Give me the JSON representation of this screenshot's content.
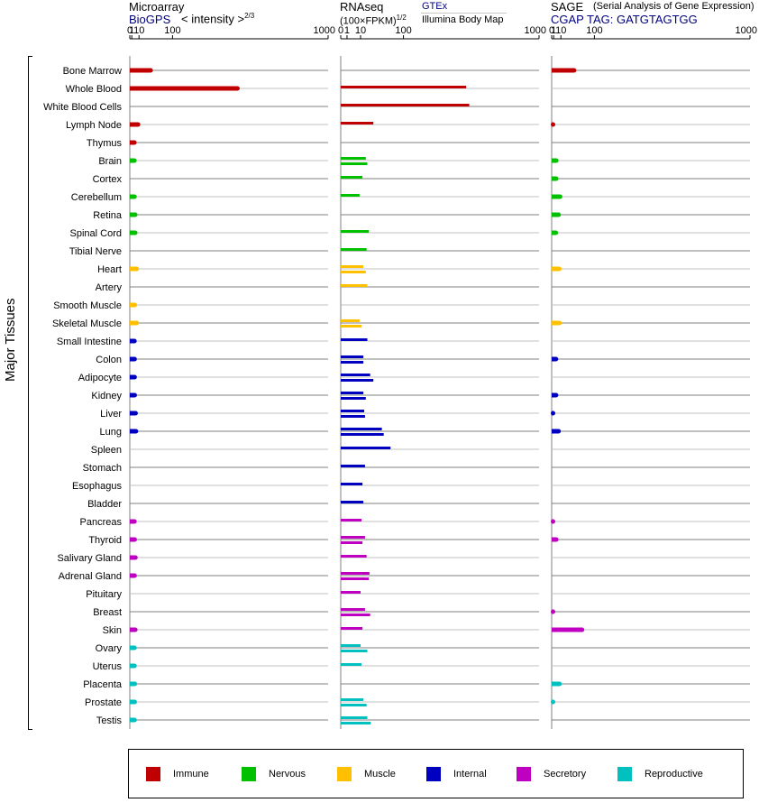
{
  "headers": {
    "microarray_title": "Microarray",
    "microarray_source": "BioGPS",
    "microarray_unit": "< intensity >",
    "microarray_unit_exp": "2/3",
    "rnaseq_title": "RNAseq",
    "rnaseq_unit": "(100×FPKM)",
    "rnaseq_unit_exp": "1/2",
    "rnaseq_source_gtex": "GTEx",
    "rnaseq_source_illumina": "Illumina Body Map",
    "sage_title": "SAGE",
    "sage_subtitle": "(Serial Analysis of Gene Expression)",
    "sage_tag": "CGAP TAG: GATGTAGTGG"
  },
  "y_axis_label": "Major Tissues",
  "legend": [
    {
      "label": "Immune",
      "color": "#c00000"
    },
    {
      "label": "Nervous",
      "color": "#00c000"
    },
    {
      "label": "Muscle",
      "color": "#ffc000"
    },
    {
      "label": "Internal",
      "color": "#0000c0"
    },
    {
      "label": "Secretory",
      "color": "#c000c0"
    },
    {
      "label": "Reproductive",
      "color": "#00c0c0"
    }
  ],
  "chart_data": [
    {
      "type": "bar",
      "title": "Microarray",
      "scale": "power 2/3",
      "xlim": [
        0,
        1000
      ],
      "ticks": [
        0,
        1,
        10,
        100,
        1000
      ],
      "categories": [
        "Bone Marrow",
        "Whole Blood",
        "White Blood Cells",
        "Lymph Node",
        "Thymus",
        "Brain",
        "Cortex",
        "Cerebellum",
        "Retina",
        "Spinal Cord",
        "Tibial Nerve",
        "Heart",
        "Artery",
        "Smooth Muscle",
        "Skeletal Muscle",
        "Small Intestine",
        "Colon",
        "Adipocyte",
        "Kidney",
        "Liver",
        "Lung",
        "Spleen",
        "Stomach",
        "Esophagus",
        "Bladder",
        "Pancreas",
        "Thyroid",
        "Salivary Gland",
        "Adrenal Gland",
        "Pituitary",
        "Breast",
        "Skin",
        "Ovary",
        "Uterus",
        "Placenta",
        "Prostate",
        "Testis"
      ],
      "groups": [
        "Immune",
        "Immune",
        "Immune",
        "Immune",
        "Immune",
        "Nervous",
        "Nervous",
        "Nervous",
        "Nervous",
        "Nervous",
        "Nervous",
        "Muscle",
        "Muscle",
        "Muscle",
        "Muscle",
        "Internal",
        "Internal",
        "Internal",
        "Internal",
        "Internal",
        "Internal",
        "Internal",
        "Internal",
        "Internal",
        "Internal",
        "Secretory",
        "Secretory",
        "Secretory",
        "Secretory",
        "Secretory",
        "Secretory",
        "Secretory",
        "Reproductive",
        "Reproductive",
        "Reproductive",
        "Reproductive",
        "Reproductive"
      ],
      "values": [
        [
          34
        ],
        [
          400
        ],
        [],
        [
          8.5
        ],
        [
          3.5
        ],
        [
          3.5
        ],
        [],
        [
          3.6
        ],
        [
          4.5
        ],
        [
          4.5
        ],
        [],
        [
          6.5
        ],
        [],
        [
          4
        ],
        [
          6.5
        ],
        [
          3.6
        ],
        [
          3.8
        ],
        [
          3.8
        ],
        [
          3.9
        ],
        [
          5
        ],
        [
          5.5
        ],
        [],
        [],
        [],
        [],
        [
          3.6
        ],
        [
          3.9
        ],
        [
          4.8
        ],
        [
          3.8
        ],
        [],
        [],
        [
          4.6
        ],
        [
          3.6
        ],
        [
          3.6
        ],
        [
          4
        ],
        [
          3.9
        ],
        [
          3.7
        ]
      ]
    },
    {
      "type": "bar",
      "title": "RNAseq",
      "scale": "power 1/2",
      "xlim": [
        0,
        1000
      ],
      "ticks": [
        0,
        1,
        10,
        100,
        1000
      ],
      "categories": [
        "Bone Marrow",
        "Whole Blood",
        "White Blood Cells",
        "Lymph Node",
        "Thymus",
        "Brain",
        "Cortex",
        "Cerebellum",
        "Retina",
        "Spinal Cord",
        "Tibial Nerve",
        "Heart",
        "Artery",
        "Smooth Muscle",
        "Skeletal Muscle",
        "Small Intestine",
        "Colon",
        "Adipocyte",
        "Kidney",
        "Liver",
        "Lung",
        "Spleen",
        "Stomach",
        "Esophagus",
        "Bladder",
        "Pancreas",
        "Thyroid",
        "Salivary Gland",
        "Adrenal Gland",
        "Pituitary",
        "Breast",
        "Skin",
        "Ovary",
        "Uterus",
        "Placenta",
        "Prostate",
        "Testis"
      ],
      "values": [
        [],
        [
          400
        ],
        [
          420
        ],
        [
          27
        ],
        [],
        [
          16,
          18
        ],
        [
          12
        ],
        [
          9
        ],
        [],
        [
          20
        ],
        [
          17
        ],
        [
          13,
          16
        ],
        [
          18
        ],
        [],
        [
          9,
          11
        ],
        [
          18
        ],
        [
          13,
          13
        ],
        [
          22,
          27
        ],
        [
          13,
          16
        ],
        [
          14,
          15
        ],
        [
          43,
          47
        ],
        [
          63
        ],
        [
          15
        ],
        [
          12
        ],
        [
          13
        ],
        [
          11
        ],
        [
          15,
          12
        ],
        [
          17
        ],
        [
          21,
          20
        ],
        [
          10
        ],
        [
          15,
          22
        ],
        [
          12
        ],
        [
          10,
          18
        ],
        [
          11
        ],
        [],
        [
          13,
          17
        ],
        [
          18,
          23
        ]
      ]
    },
    {
      "type": "bar",
      "title": "SAGE",
      "scale": "power 2/3",
      "xlim": [
        0,
        1000
      ],
      "ticks": [
        0,
        1,
        10,
        100,
        1000
      ],
      "categories": [
        "Bone Marrow",
        "Whole Blood",
        "White Blood Cells",
        "Lymph Node",
        "Thymus",
        "Brain",
        "Cortex",
        "Cerebellum",
        "Retina",
        "Spinal Cord",
        "Tibial Nerve",
        "Heart",
        "Artery",
        "Smooth Muscle",
        "Skeletal Muscle",
        "Small Intestine",
        "Colon",
        "Adipocyte",
        "Kidney",
        "Liver",
        "Lung",
        "Spleen",
        "Stomach",
        "Esophagus",
        "Bladder",
        "Pancreas",
        "Thyroid",
        "Salivary Gland",
        "Adrenal Gland",
        "Pituitary",
        "Breast",
        "Skin",
        "Ovary",
        "Uterus",
        "Placenta",
        "Prostate",
        "Testis"
      ],
      "values": [
        [
          38
        ],
        [],
        [],
        [
          0.1
        ],
        [],
        [
          3.5
        ],
        [
          3.4
        ],
        [
          8.8
        ],
        [
          6.6
        ],
        [
          3
        ],
        [],
        [
          7.6
        ],
        [],
        [],
        [
          7.7
        ],
        [],
        [
          3.2
        ],
        [],
        [
          3.3
        ],
        [
          0.1
        ],
        [
          6.5
        ],
        [],
        [],
        [],
        [],
        [
          0.1
        ],
        [
          3.5
        ],
        [],
        [],
        [],
        [
          0.1
        ],
        [
          60
        ],
        [],
        [],
        [
          7.8
        ],
        [
          0.1
        ],
        []
      ]
    }
  ]
}
